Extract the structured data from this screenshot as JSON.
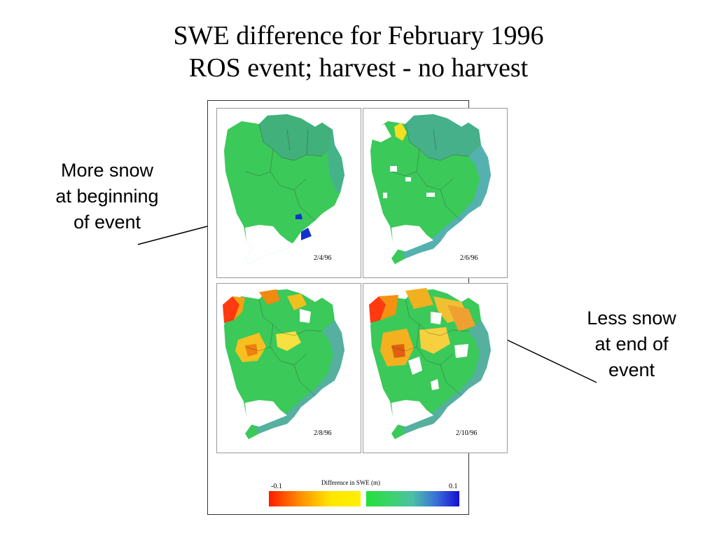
{
  "title": {
    "line1": "SWE difference for February 1996",
    "line2": "ROS event; harvest - no harvest"
  },
  "annotations": {
    "left": [
      "More snow",
      "at beginning",
      "of event"
    ],
    "right": [
      "Less snow",
      "at end of",
      "event"
    ]
  },
  "panels": [
    {
      "date": "2/4/96"
    },
    {
      "date": "2/6/96"
    },
    {
      "date": "2/8/96"
    },
    {
      "date": "2/10/96"
    }
  ],
  "colorbar": {
    "title": "Difference in SWE (m)",
    "min_label": "-0.1",
    "max_label": "0.1",
    "colors": {
      "negative_low": "#ff1a00",
      "negative_high": "#fff000",
      "positive_low": "#22e03a",
      "positive_high": "#1410d0"
    }
  }
}
